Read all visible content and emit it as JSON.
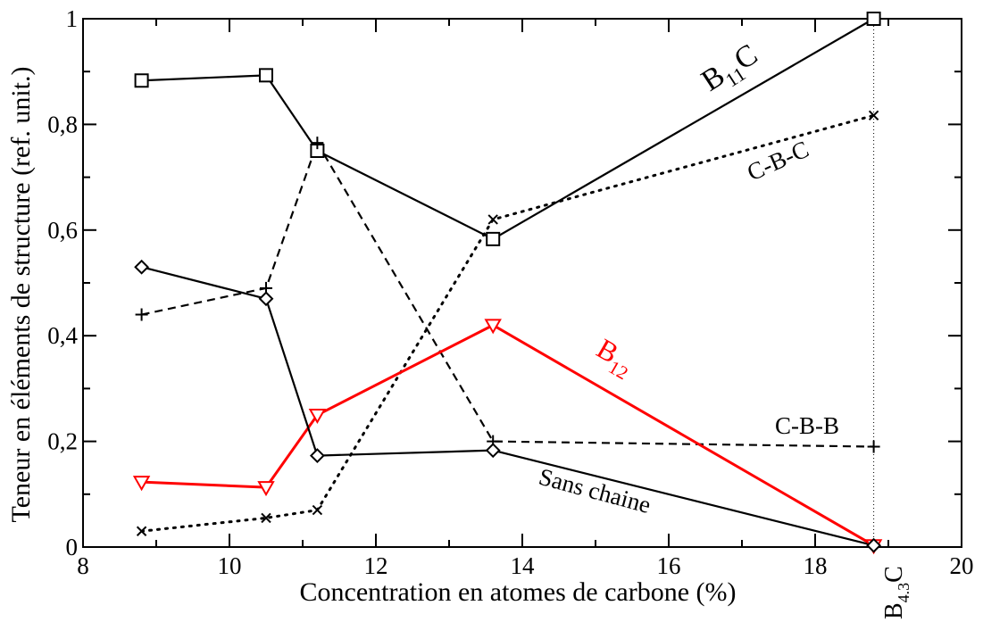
{
  "chart_data": {
    "type": "line",
    "title": "",
    "xlabel": "Concentration en atomes de carbone (%)",
    "ylabel": "Teneur en éléments de structure (ref. unit.)",
    "xlim": [
      8,
      20
    ],
    "ylim": [
      0,
      1
    ],
    "x_ticks": [
      8,
      10,
      12,
      14,
      16,
      18,
      20
    ],
    "x_tick_labels": [
      "8",
      "10",
      "12",
      "14",
      "16",
      "18",
      "20"
    ],
    "y_ticks": [
      0,
      0.2,
      0.4,
      0.6,
      0.8,
      1
    ],
    "y_tick_labels": [
      "0",
      "0,2",
      "0,4",
      "0,6",
      "0,8",
      "1"
    ],
    "grid": false,
    "series": [
      {
        "name": "B11C",
        "style": "solid",
        "marker": "square",
        "color": "#000000",
        "x": [
          8.8,
          10.5,
          11.2,
          13.6,
          18.8
        ],
        "y": [
          0.883,
          0.893,
          0.75,
          0.583,
          1.0
        ]
      },
      {
        "name": "C-B-C",
        "style": "dotted",
        "marker": "x",
        "color": "#000000",
        "x": [
          8.8,
          10.5,
          11.2,
          13.6,
          18.8
        ],
        "y": [
          0.03,
          0.055,
          0.07,
          0.62,
          0.817
        ]
      },
      {
        "name": "C-B-B",
        "style": "dashed",
        "marker": "plus",
        "color": "#000000",
        "x": [
          8.8,
          10.5,
          11.2,
          13.6,
          18.8
        ],
        "y": [
          0.44,
          0.49,
          0.765,
          0.2,
          0.19
        ]
      },
      {
        "name": "B12",
        "style": "solid",
        "marker": "triangle-down",
        "color": "#ff0000",
        "x": [
          8.8,
          10.5,
          11.2,
          13.6,
          18.8
        ],
        "y": [
          0.123,
          0.113,
          0.25,
          0.42,
          0.003
        ]
      },
      {
        "name": "Sans chaine",
        "style": "solid",
        "marker": "diamond",
        "color": "#000000",
        "x": [
          8.8,
          10.5,
          11.2,
          13.6,
          18.8
        ],
        "y": [
          0.53,
          0.47,
          0.173,
          0.183,
          0.003
        ]
      }
    ],
    "annotations": [
      {
        "id": "b11c",
        "base": "B",
        "sub": "11",
        "tail": "C",
        "color": "#000000"
      },
      {
        "id": "cbc",
        "text": "C-B-C",
        "color": "#000000"
      },
      {
        "id": "b12",
        "base": "B",
        "sub": "12",
        "tail": "",
        "color": "#ff0000"
      },
      {
        "id": "cbb",
        "text": "C-B-B",
        "color": "#000000"
      },
      {
        "id": "sans",
        "text": "Sans chaine",
        "color": "#000000"
      },
      {
        "id": "b43c",
        "base": "B",
        "sub": "4.3",
        "tail": "C",
        "color": "#000000"
      }
    ],
    "reference_line": {
      "x": 18.8,
      "style": "dotted"
    }
  }
}
